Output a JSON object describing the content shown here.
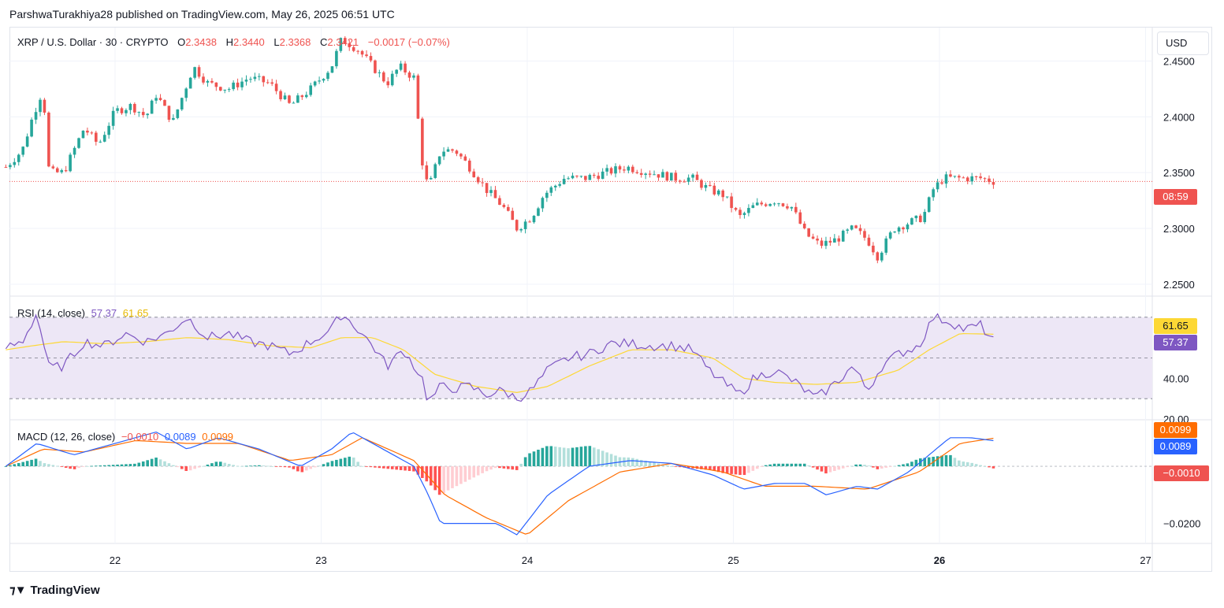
{
  "header": {
    "publisher_line": "ParshwaTurakhiya28 published on TradingView.com, May 26, 2025 06:51 UTC"
  },
  "main_pane": {
    "symbol": "XRP / U.S. Dollar · 30 · CRYPTO",
    "open_label": "O",
    "open": "2.3438",
    "high_label": "H",
    "high": "2.3440",
    "low_label": "L",
    "low": "2.3368",
    "close_label": "C",
    "close": "2.3421",
    "change": "−0.0017 (−0.07%)",
    "currency_button": "USD",
    "price_tag": "08:59",
    "price_axis_labels": [
      "2.4500",
      "2.4000",
      "2.3500",
      "2.3000",
      "2.2500"
    ]
  },
  "rsi_pane": {
    "title": "RSI (14, close)",
    "rsi_value": "57.37",
    "ma_value": "61.65",
    "axis_labels": [
      "40.00",
      "20.00"
    ]
  },
  "macd_pane": {
    "title": "MACD (12, 26, close)",
    "hist_value": "−0.0010",
    "macd_value": "0.0089",
    "signal_value": "0.0099",
    "axis_labels": [
      "−0.0200"
    ]
  },
  "time_axis": [
    "22",
    "23",
    "24",
    "25",
    "26",
    "27"
  ],
  "footer": {
    "brand": "TradingView"
  },
  "colors": {
    "up": "#26a69a",
    "down": "#ef5350",
    "rsi_line": "#7e57c2",
    "rsi_ma": "#fdd835",
    "rsi_band": "#ede7f6",
    "macd_line": "#2962ff",
    "signal_line": "#ff6d00",
    "hist_up_strong": "#26a69a",
    "hist_up_weak": "#b2dfdb",
    "hist_down_strong": "#ff5252",
    "hist_down_weak": "#ffcdd2"
  },
  "chart_data": [
    {
      "type": "candlestick",
      "title": "XRP / U.S. Dollar · 30 · CRYPTO",
      "x_ticks": [
        "22",
        "23",
        "24",
        "25",
        "26",
        "27"
      ],
      "ylim": [
        2.24,
        2.48
      ],
      "last_price": 2.3421,
      "close_path": [
        [
          21.47,
          2.355
        ],
        [
          21.55,
          2.37
        ],
        [
          21.6,
          2.4
        ],
        [
          21.65,
          2.425
        ],
        [
          21.68,
          2.35
        ],
        [
          21.75,
          2.35
        ],
        [
          21.8,
          2.37
        ],
        [
          21.85,
          2.39
        ],
        [
          21.92,
          2.375
        ],
        [
          22.0,
          2.405
        ],
        [
          22.08,
          2.41
        ],
        [
          22.15,
          2.4
        ],
        [
          22.2,
          2.42
        ],
        [
          22.28,
          2.395
        ],
        [
          22.35,
          2.43
        ],
        [
          22.38,
          2.445
        ],
        [
          22.45,
          2.43
        ],
        [
          22.55,
          2.425
        ],
        [
          22.65,
          2.435
        ],
        [
          22.75,
          2.43
        ],
        [
          22.85,
          2.41
        ],
        [
          22.95,
          2.425
        ],
        [
          23.05,
          2.445
        ],
        [
          23.1,
          2.47
        ],
        [
          23.18,
          2.46
        ],
        [
          23.25,
          2.445
        ],
        [
          23.32,
          2.43
        ],
        [
          23.38,
          2.445
        ],
        [
          23.45,
          2.435
        ],
        [
          23.49,
          2.36
        ],
        [
          23.52,
          2.335
        ],
        [
          23.58,
          2.37
        ],
        [
          23.65,
          2.37
        ],
        [
          23.72,
          2.355
        ],
        [
          23.8,
          2.335
        ],
        [
          23.88,
          2.32
        ],
        [
          23.95,
          2.3
        ],
        [
          24.02,
          2.31
        ],
        [
          24.08,
          2.33
        ],
        [
          24.18,
          2.345
        ],
        [
          24.28,
          2.345
        ],
        [
          24.38,
          2.35
        ],
        [
          24.48,
          2.355
        ],
        [
          24.6,
          2.35
        ],
        [
          24.72,
          2.345
        ],
        [
          24.8,
          2.345
        ],
        [
          24.88,
          2.335
        ],
        [
          24.95,
          2.33
        ],
        [
          25.03,
          2.31
        ],
        [
          25.1,
          2.32
        ],
        [
          25.2,
          2.325
        ],
        [
          25.28,
          2.32
        ],
        [
          25.35,
          2.295
        ],
        [
          25.42,
          2.285
        ],
        [
          25.5,
          2.29
        ],
        [
          25.58,
          2.3
        ],
        [
          25.65,
          2.29
        ],
        [
          25.7,
          2.275
        ],
        [
          25.78,
          2.3
        ],
        [
          25.85,
          2.305
        ],
        [
          25.92,
          2.31
        ],
        [
          25.97,
          2.335
        ],
        [
          26.02,
          2.345
        ],
        [
          26.08,
          2.345
        ],
        [
          26.15,
          2.345
        ],
        [
          26.2,
          2.345
        ],
        [
          26.27,
          2.342
        ]
      ]
    },
    {
      "type": "line",
      "title": "RSI (14, close)",
      "ylim": [
        20,
        80
      ],
      "bands": [
        70,
        50,
        30
      ],
      "series": [
        {
          "name": "RSI",
          "last": 57.37,
          "values": [
            [
              21.47,
              55
            ],
            [
              21.55,
              58
            ],
            [
              21.62,
              72
            ],
            [
              21.68,
              45
            ],
            [
              21.75,
              46
            ],
            [
              21.85,
              58
            ],
            [
              21.95,
              56
            ],
            [
              22.05,
              62
            ],
            [
              22.15,
              58
            ],
            [
              22.25,
              62
            ],
            [
              22.35,
              70
            ],
            [
              22.45,
              60
            ],
            [
              22.55,
              62
            ],
            [
              22.65,
              58
            ],
            [
              22.75,
              56
            ],
            [
              22.85,
              52
            ],
            [
              22.95,
              58
            ],
            [
              23.05,
              64
            ],
            [
              23.1,
              72
            ],
            [
              23.18,
              64
            ],
            [
              23.25,
              56
            ],
            [
              23.32,
              46
            ],
            [
              23.4,
              54
            ],
            [
              23.49,
              40
            ],
            [
              23.52,
              28
            ],
            [
              23.58,
              36
            ],
            [
              23.65,
              35
            ],
            [
              23.72,
              36
            ],
            [
              23.8,
              32
            ],
            [
              23.88,
              34
            ],
            [
              23.95,
              30
            ],
            [
              24.02,
              34
            ],
            [
              24.1,
              44
            ],
            [
              24.2,
              50
            ],
            [
              24.3,
              52
            ],
            [
              24.4,
              57
            ],
            [
              24.5,
              57
            ],
            [
              24.6,
              56
            ],
            [
              24.7,
              56
            ],
            [
              24.8,
              54
            ],
            [
              24.88,
              44
            ],
            [
              24.95,
              38
            ],
            [
              25.03,
              32
            ],
            [
              25.1,
              40
            ],
            [
              25.2,
              44
            ],
            [
              25.3,
              38
            ],
            [
              25.4,
              30
            ],
            [
              25.5,
              38
            ],
            [
              25.58,
              46
            ],
            [
              25.65,
              34
            ],
            [
              25.72,
              46
            ],
            [
              25.8,
              52
            ],
            [
              25.9,
              56
            ],
            [
              25.97,
              70
            ],
            [
              26.05,
              68
            ],
            [
              26.12,
              64
            ],
            [
              26.2,
              66
            ],
            [
              26.27,
              57.37
            ]
          ]
        },
        {
          "name": "RSI-based MA",
          "last": 61.65,
          "values": [
            [
              21.47,
              54
            ],
            [
              21.6,
              56
            ],
            [
              21.75,
              58
            ],
            [
              21.95,
              57
            ],
            [
              22.15,
              58
            ],
            [
              22.35,
              60
            ],
            [
              22.55,
              59
            ],
            [
              22.75,
              56
            ],
            [
              22.95,
              55
            ],
            [
              23.1,
              60
            ],
            [
              23.25,
              60
            ],
            [
              23.4,
              54
            ],
            [
              23.55,
              42
            ],
            [
              23.75,
              36
            ],
            [
              23.95,
              33
            ],
            [
              24.1,
              36
            ],
            [
              24.3,
              46
            ],
            [
              24.5,
              54
            ],
            [
              24.7,
              54
            ],
            [
              24.9,
              50
            ],
            [
              25.05,
              40
            ],
            [
              25.2,
              38
            ],
            [
              25.4,
              37
            ],
            [
              25.6,
              38
            ],
            [
              25.8,
              44
            ],
            [
              25.95,
              54
            ],
            [
              26.1,
              62
            ],
            [
              26.27,
              61.65
            ]
          ]
        }
      ],
      "axis_labels": [
        "40.00",
        "20.00"
      ]
    },
    {
      "type": "line",
      "title": "MACD (12, 26, close)",
      "series": [
        {
          "name": "MACD",
          "last": 0.0089,
          "values": [
            [
              21.47,
              0.0
            ],
            [
              21.62,
              0.008
            ],
            [
              21.8,
              0.004
            ],
            [
              22.0,
              0.008
            ],
            [
              22.2,
              0.012
            ],
            [
              22.35,
              0.006
            ],
            [
              22.5,
              0.01
            ],
            [
              22.7,
              0.006
            ],
            [
              22.9,
              0.0
            ],
            [
              23.05,
              0.006
            ],
            [
              23.15,
              0.012
            ],
            [
              23.3,
              0.006
            ],
            [
              23.45,
              0.0
            ],
            [
              23.52,
              -0.01
            ],
            [
              23.58,
              -0.02
            ],
            [
              23.7,
              -0.02
            ],
            [
              23.85,
              -0.02
            ],
            [
              23.95,
              -0.024
            ],
            [
              24.1,
              -0.01
            ],
            [
              24.3,
              0.0
            ],
            [
              24.5,
              0.002
            ],
            [
              24.7,
              0.001
            ],
            [
              24.9,
              -0.003
            ],
            [
              25.05,
              -0.008
            ],
            [
              25.2,
              -0.006
            ],
            [
              25.35,
              -0.006
            ],
            [
              25.45,
              -0.01
            ],
            [
              25.6,
              -0.007
            ],
            [
              25.7,
              -0.008
            ],
            [
              25.85,
              -0.002
            ],
            [
              25.95,
              0.004
            ],
            [
              26.05,
              0.01
            ],
            [
              26.15,
              0.01
            ],
            [
              26.27,
              0.0089
            ]
          ]
        },
        {
          "name": "Signal",
          "last": 0.0099,
          "values": [
            [
              21.47,
              0.0
            ],
            [
              21.65,
              0.006
            ],
            [
              21.85,
              0.005
            ],
            [
              22.1,
              0.009
            ],
            [
              22.35,
              0.008
            ],
            [
              22.6,
              0.008
            ],
            [
              22.85,
              0.002
            ],
            [
              23.05,
              0.004
            ],
            [
              23.2,
              0.01
            ],
            [
              23.45,
              0.002
            ],
            [
              23.6,
              -0.01
            ],
            [
              23.8,
              -0.018
            ],
            [
              24.0,
              -0.024
            ],
            [
              24.2,
              -0.012
            ],
            [
              24.45,
              -0.002
            ],
            [
              24.7,
              0.001
            ],
            [
              24.95,
              -0.002
            ],
            [
              25.15,
              -0.007
            ],
            [
              25.4,
              -0.007
            ],
            [
              25.65,
              -0.008
            ],
            [
              25.9,
              -0.002
            ],
            [
              26.1,
              0.008
            ],
            [
              26.27,
              0.0099
            ]
          ]
        }
      ],
      "histogram_last": -0.001,
      "axis_labels": [
        "−0.0200"
      ]
    }
  ]
}
